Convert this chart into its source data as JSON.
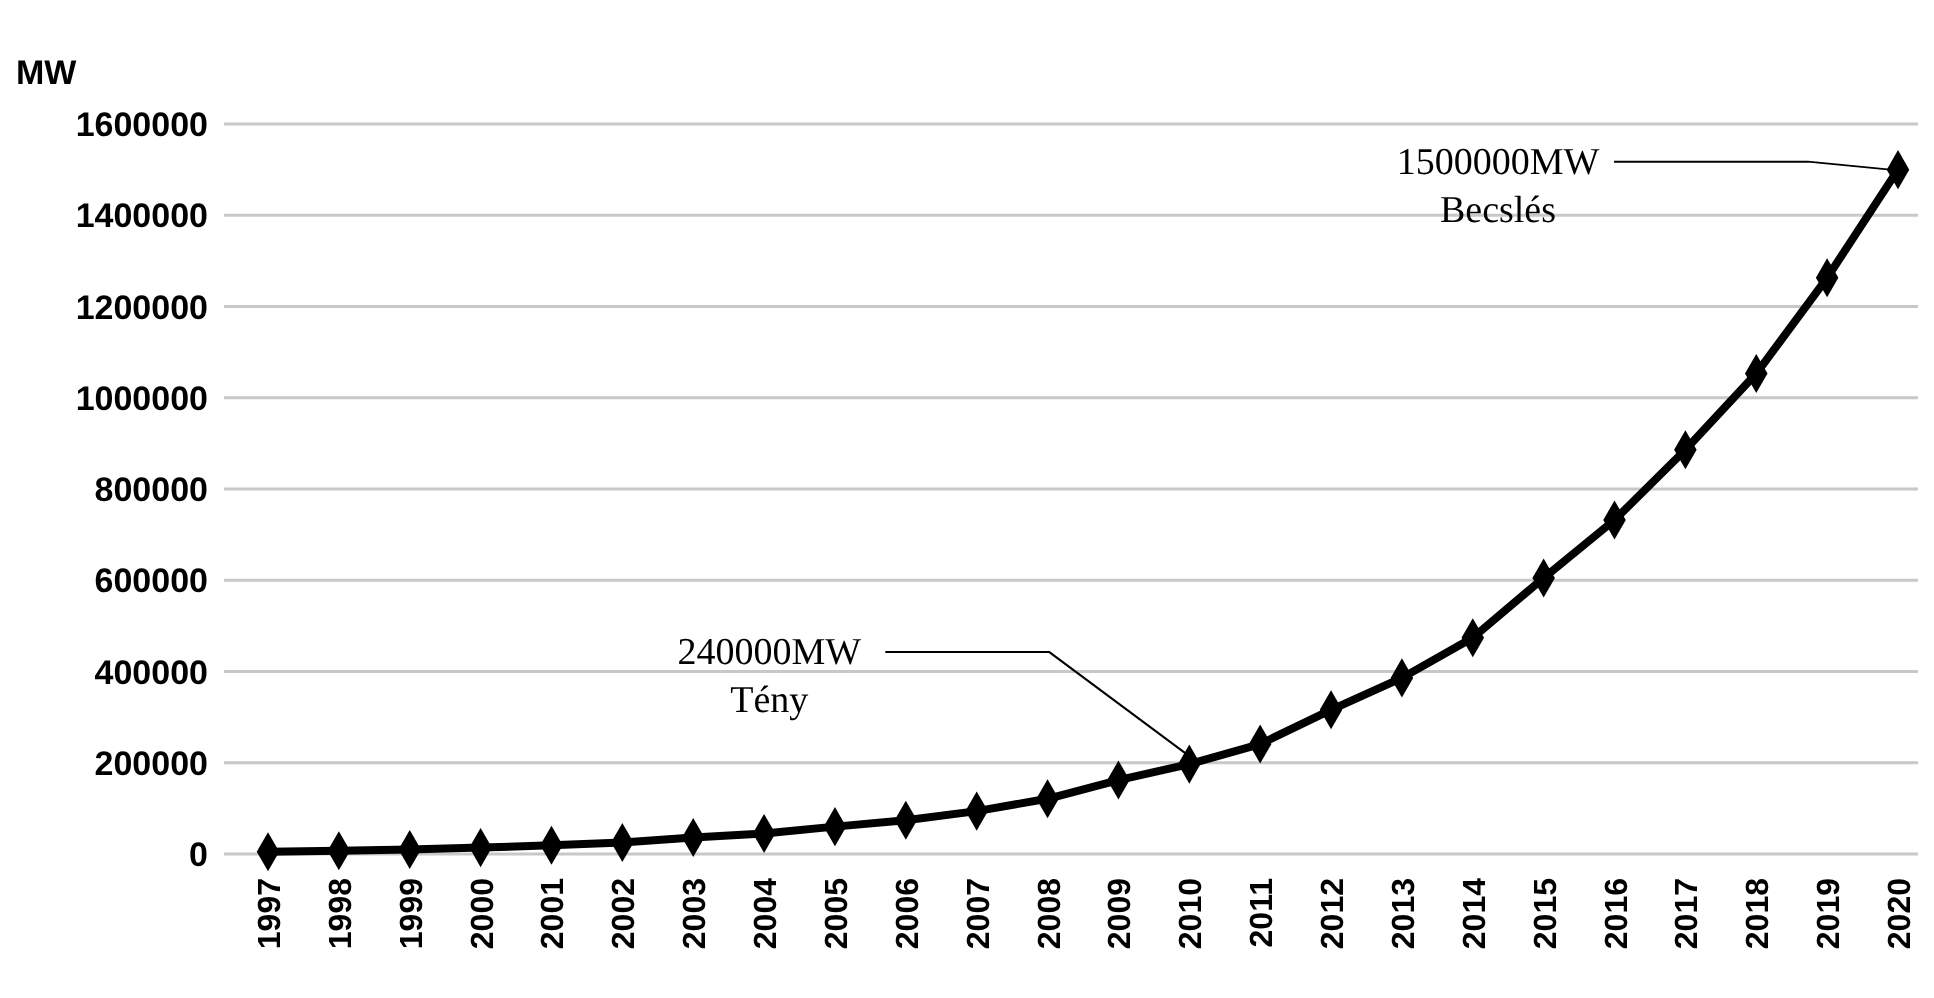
{
  "chart_data": {
    "type": "line",
    "ylabel": "MW",
    "categories": [
      "1997",
      "1998",
      "1999",
      "2000",
      "2001",
      "2002",
      "2003",
      "2004",
      "2005",
      "2006",
      "2007",
      "2008",
      "2009",
      "2010",
      "2011",
      "2012",
      "2013",
      "2014",
      "2015",
      "2016",
      "2017",
      "2018",
      "2019",
      "2020"
    ],
    "series": [
      {
        "color": "#000000",
        "values": [
          5000,
          7000,
          10000,
          14000,
          19000,
          25000,
          36000,
          45000,
          60000,
          74000,
          94000,
          121000,
          162000,
          197000,
          241000,
          316000,
          386000,
          474000,
          605000,
          732000,
          886000,
          1053000,
          1263000,
          1500000
        ]
      }
    ],
    "ylim": [
      0,
      1600000
    ],
    "yticks": [
      0,
      200000,
      400000,
      600000,
      800000,
      1000000,
      1200000,
      1400000,
      1600000
    ],
    "grid": "y",
    "marker": "diamond",
    "line_style": "solid",
    "annotations": [
      {
        "text": "240000MW\nTény",
        "x": "2010",
        "y": 197000
      },
      {
        "text": "1500000MW\nBecslés",
        "x": "2020",
        "y": 1500000
      }
    ]
  }
}
